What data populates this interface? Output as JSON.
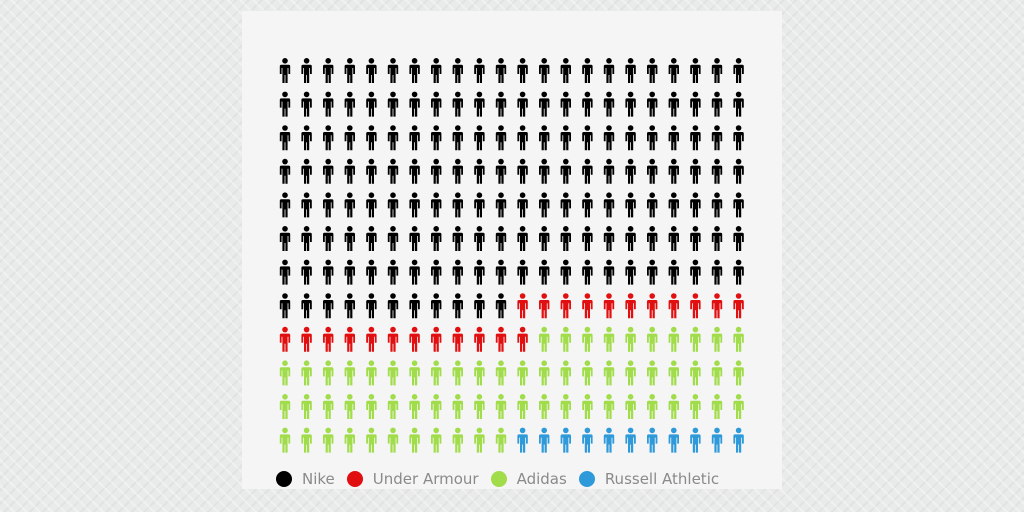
{
  "chart_data": {
    "type": "pictogram",
    "columns": 22,
    "rows": 12,
    "categories": [
      "Nike",
      "Under Armour",
      "Adidas",
      "Russell Athletic"
    ],
    "values": [
      165,
      23,
      65,
      11
    ],
    "colors": [
      "#000000",
      "#e10f0f",
      "#a1dc4a",
      "#2f9ad9"
    ],
    "legend_position": "bottom"
  },
  "legend": {
    "items": [
      {
        "label": "Nike",
        "color": "#000000"
      },
      {
        "label": "Under Armour",
        "color": "#e10f0f"
      },
      {
        "label": "Adidas",
        "color": "#a1dc4a"
      },
      {
        "label": "Russell Athletic",
        "color": "#2f9ad9"
      }
    ]
  }
}
